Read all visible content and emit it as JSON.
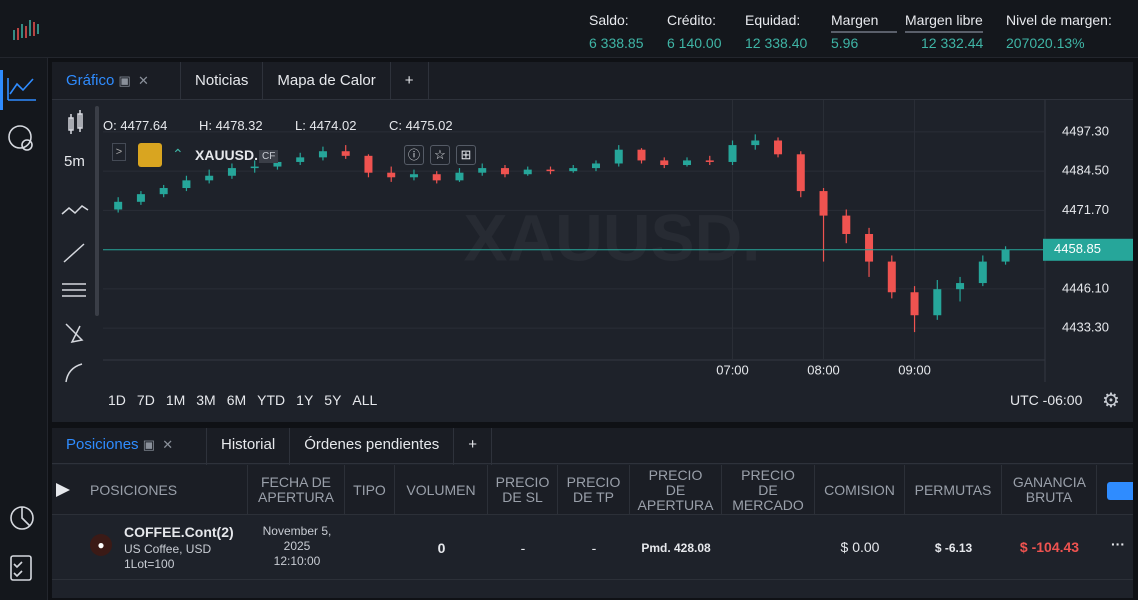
{
  "account": [
    {
      "label": "Saldo:",
      "value": "6 338.85"
    },
    {
      "label": "Crédito:",
      "value": "6 140.00"
    },
    {
      "label": "Equidad:",
      "value": "12 338.40"
    },
    {
      "label": "Margen",
      "value": "5.96"
    },
    {
      "label": "Margen libre",
      "value": "12 332.44"
    },
    {
      "label": "Nivel de margen:",
      "value": "207020.13%"
    }
  ],
  "top_tabs": [
    "Gráfico",
    "Noticias",
    "Mapa de Calor",
    "+"
  ],
  "timeframe": "5m",
  "ohlc_info": [
    {
      "label": "O:",
      "value": "4477.64"
    },
    {
      "label": "H:",
      "value": "4478.32"
    },
    {
      "label": "L:",
      "value": "4474.02"
    },
    {
      "label": "C:",
      "value": "4475.02"
    }
  ],
  "symbol": "XAUUSD.",
  "symbol_badge": "CF",
  "ranges": [
    "1D",
    "7D",
    "1M",
    "3M",
    "6M",
    "YTD",
    "1Y",
    "5Y",
    "ALL"
  ],
  "timezone": "UTC -06:00",
  "chart_data": {
    "type": "candlestick",
    "watermark": "XAUUSD.",
    "x": [
      15,
      30,
      45,
      60,
      75,
      90,
      105,
      120,
      135,
      150,
      165,
      180,
      195,
      210,
      225,
      240,
      255,
      270,
      285,
      300,
      315,
      330,
      345,
      360,
      375,
      390,
      405,
      420,
      435,
      450,
      465,
      480,
      495,
      510,
      525,
      540,
      555,
      570,
      585,
      600
    ],
    "open": [
      4472,
      4474.5,
      4477,
      4479,
      4481.5,
      4483,
      4485.5,
      4486,
      4487.5,
      4489,
      4491,
      4489.5,
      4484,
      4482.5,
      4483.5,
      4481.5,
      4484,
      4485.5,
      4483.5,
      4485,
      4484.5,
      4485.5,
      4487,
      4491.5,
      4488,
      4486.5,
      4488,
      4487.5,
      4493,
      4494.5,
      4490,
      4478,
      4470,
      4464,
      4455,
      4445,
      4437.5,
      4446,
      4448,
      4455
    ],
    "high": [
      4476,
      4478,
      4480,
      4483,
      4485,
      4487,
      4488,
      4489,
      4490.5,
      4492.5,
      4493,
      4490,
      4486,
      4485,
      4484.5,
      4485.5,
      4487,
      4486.5,
      4486,
      4486,
      4486.5,
      4488,
      4493,
      4492,
      4489,
      4489,
      4489.5,
      4494.5,
      4496.5,
      4495.5,
      4491,
      4479,
      4472,
      4466,
      4457,
      4447,
      4449,
      4450,
      4457,
      4460
    ],
    "low": [
      4471,
      4473.5,
      4476,
      4478,
      4480.5,
      4482,
      4484,
      4485,
      4486.5,
      4488,
      4488.5,
      4482.5,
      4481,
      4481.5,
      4480.5,
      4481,
      4483,
      4482.5,
      4483,
      4483.5,
      4484,
      4484.5,
      4486,
      4487,
      4485.5,
      4486,
      4486.5,
      4486.5,
      4491.5,
      4489,
      4476,
      4455,
      4461,
      4450,
      4443,
      4432,
      4436,
      4442,
      4447,
      4454
    ],
    "close": [
      4474.5,
      4477,
      4479,
      4481.5,
      4483,
      4485.5,
      4486,
      4487.5,
      4489,
      4491,
      4489.5,
      4484,
      4482.5,
      4483.5,
      4481.5,
      4484,
      4485.5,
      4483.5,
      4485,
      4484.5,
      4485.5,
      4487,
      4491.5,
      4488,
      4486.5,
      4488,
      4487.5,
      4493,
      4494.5,
      4490,
      4478,
      4470,
      4464,
      4455,
      4445,
      4437.5,
      4446,
      4448,
      4455,
      4458.85
    ],
    "up_color": "#26a69a",
    "down_color": "#ef5350",
    "last_price": 4458.85,
    "xlim": [
      5,
      626
    ],
    "ylim": [
      4422.9,
      4505.1
    ],
    "xticks": [
      {
        "value": 420,
        "label": "07:00"
      },
      {
        "value": 480,
        "label": "08:00"
      },
      {
        "value": 540,
        "label": "09:00"
      }
    ],
    "yticks": [
      {
        "value": 4433.3,
        "label": "4433.30"
      },
      {
        "value": 4446.1,
        "label": "4446.10"
      },
      {
        "value": 4471.7,
        "label": "4471.70"
      },
      {
        "value": 4484.5,
        "label": "4484.50"
      },
      {
        "value": 4497.3,
        "label": "4497.30"
      }
    ],
    "grid": true
  },
  "bottom_tabs": [
    "Posiciones",
    "Historial",
    "Órdenes pendientes",
    "+"
  ],
  "table": {
    "headers": [
      "POSICIONES",
      "FECHA DE APERTURA",
      "TIPO",
      "VOLUMEN",
      "PRECIO DE SL",
      "PRECIO DE TP",
      "PRECIO DE APERTURA",
      "PRECIO DE MERCADO",
      "COMISION",
      "PERMUTAS",
      "GANANCIA BRUTA"
    ],
    "rows": [
      {
        "symbol": "COFFEE.Cont(2)",
        "description": "US Coffee, USD",
        "lot": "1Lot=100",
        "date": "November 5, 2025",
        "time": "12:10:00",
        "type": "",
        "volume": "0",
        "sl": "-",
        "tp": "-",
        "open_price": "Pmd. 428.08",
        "commission": "$ 0.00",
        "swaps": "$ -6.13",
        "profit": "$ -104.43",
        "menu": "···"
      }
    ]
  }
}
